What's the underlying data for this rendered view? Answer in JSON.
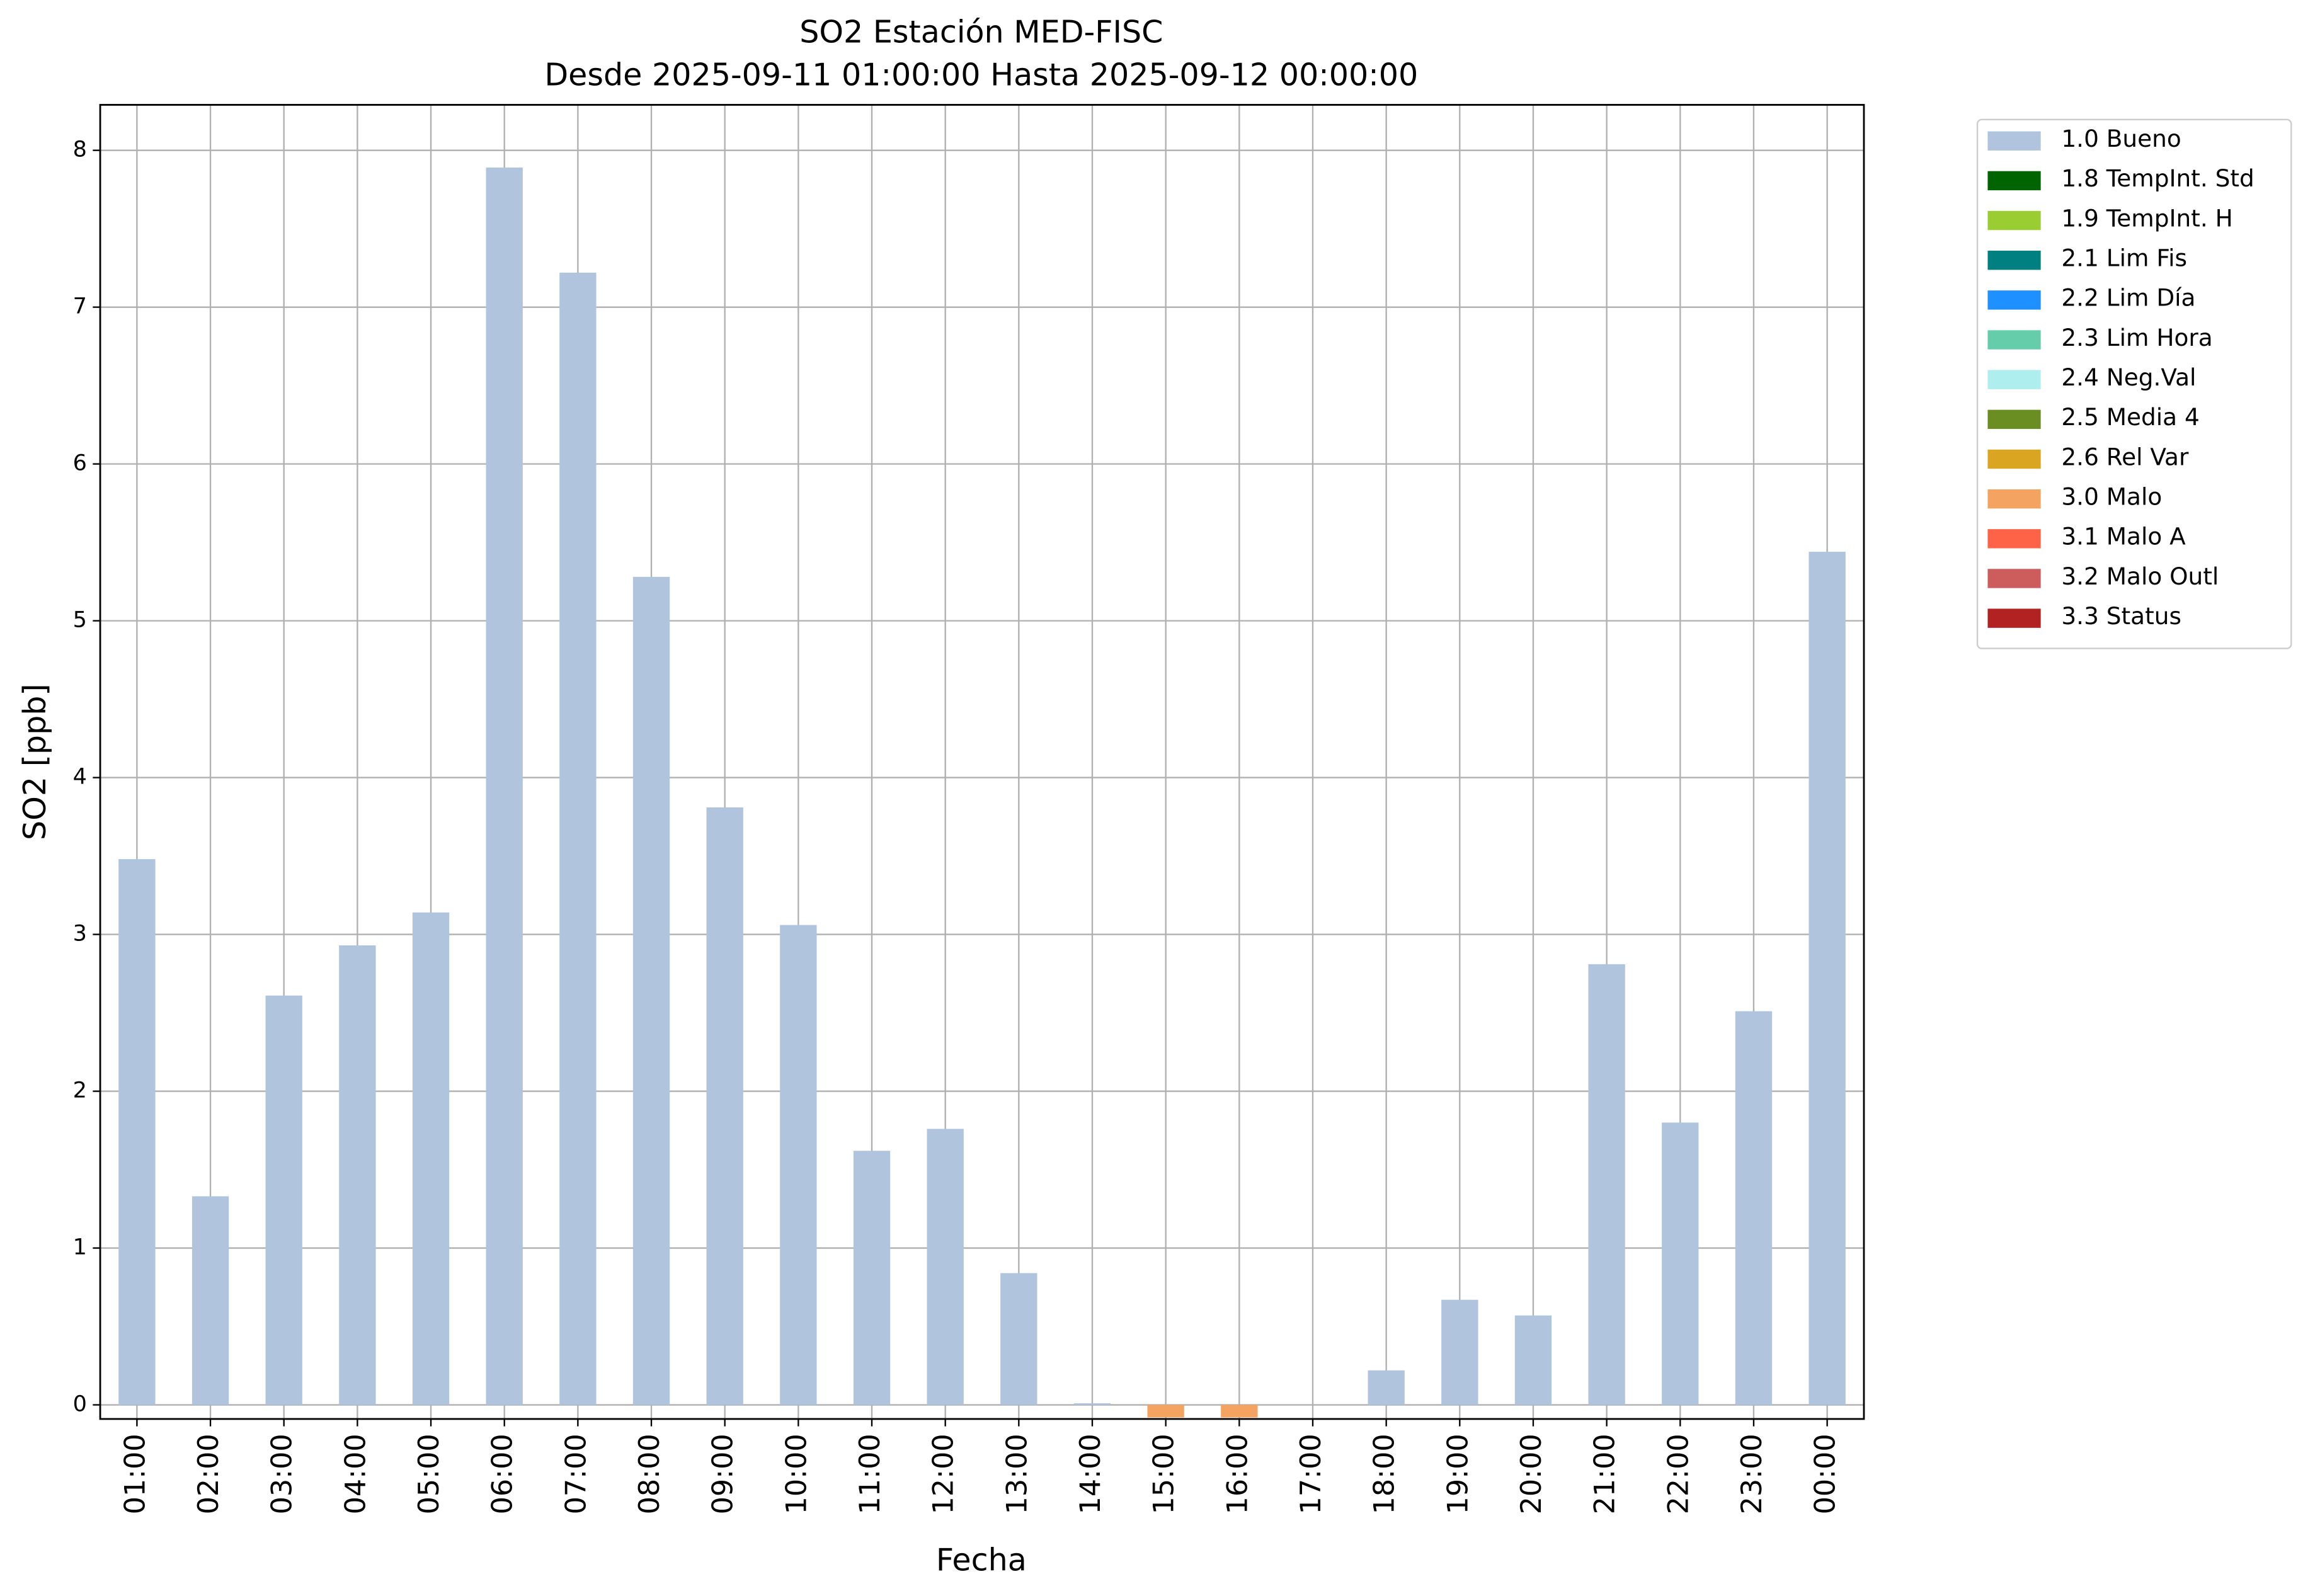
{
  "chart_data": {
    "type": "bar",
    "stacked": true,
    "title": "SO2 Estación MED-FISC",
    "subtitle": "Desde 2025-09-11 01:00:00 Hasta 2025-09-12 00:00:00",
    "xlabel": "Fecha",
    "ylabel": "SO2 [ppb]",
    "categories": [
      "01:00",
      "02:00",
      "03:00",
      "04:00",
      "05:00",
      "06:00",
      "07:00",
      "08:00",
      "09:00",
      "10:00",
      "11:00",
      "12:00",
      "13:00",
      "14:00",
      "15:00",
      "16:00",
      "17:00",
      "18:00",
      "19:00",
      "20:00",
      "21:00",
      "22:00",
      "23:00",
      "00:00"
    ],
    "series": [
      {
        "name": "1.0 Bueno",
        "color": "#b0c4de",
        "values": [
          3.48,
          1.33,
          2.61,
          2.93,
          3.14,
          7.89,
          7.22,
          5.28,
          3.81,
          3.06,
          1.62,
          1.76,
          0.84,
          0.01,
          null,
          null,
          0,
          0.22,
          0.67,
          0.57,
          2.81,
          1.8,
          2.51,
          5.44
        ]
      },
      {
        "name": "1.8 TempInt. Std",
        "color": "#006400",
        "values": [
          null,
          null,
          null,
          null,
          null,
          null,
          null,
          null,
          null,
          null,
          null,
          null,
          null,
          null,
          null,
          null,
          null,
          null,
          null,
          null,
          null,
          null,
          null,
          null
        ]
      },
      {
        "name": "1.9 TempInt. H",
        "color": "#9acd32",
        "values": [
          null,
          null,
          null,
          null,
          null,
          null,
          null,
          null,
          null,
          null,
          null,
          null,
          null,
          null,
          null,
          null,
          null,
          null,
          null,
          null,
          null,
          null,
          null,
          null
        ]
      },
      {
        "name": "2.1 Lim Fis",
        "color": "#008080",
        "values": [
          null,
          null,
          null,
          null,
          null,
          null,
          null,
          null,
          null,
          null,
          null,
          null,
          null,
          null,
          null,
          null,
          null,
          null,
          null,
          null,
          null,
          null,
          null,
          null
        ]
      },
      {
        "name": "2.2 Lim Día",
        "color": "#1e90ff",
        "values": [
          null,
          null,
          null,
          null,
          null,
          null,
          null,
          null,
          null,
          null,
          null,
          null,
          null,
          null,
          null,
          null,
          null,
          null,
          null,
          null,
          null,
          null,
          null,
          null
        ]
      },
      {
        "name": "2.3 Lim Hora",
        "color": "#66cdaa",
        "values": [
          null,
          null,
          null,
          null,
          null,
          null,
          null,
          null,
          null,
          null,
          null,
          null,
          null,
          null,
          null,
          null,
          null,
          null,
          null,
          null,
          null,
          null,
          null,
          null
        ]
      },
      {
        "name": "2.4 Neg.Val",
        "color": "#afeeee",
        "values": [
          null,
          null,
          null,
          null,
          null,
          null,
          null,
          null,
          null,
          null,
          null,
          null,
          null,
          null,
          null,
          null,
          null,
          null,
          null,
          null,
          null,
          null,
          null,
          null
        ]
      },
      {
        "name": "2.5 Media 4",
        "color": "#6b8e23",
        "values": [
          null,
          null,
          null,
          null,
          null,
          null,
          null,
          null,
          null,
          null,
          null,
          null,
          null,
          null,
          null,
          null,
          null,
          null,
          null,
          null,
          null,
          null,
          null,
          null
        ]
      },
      {
        "name": "2.6 Rel Var",
        "color": "#daa520",
        "values": [
          null,
          null,
          null,
          null,
          null,
          null,
          null,
          null,
          null,
          null,
          null,
          null,
          null,
          null,
          null,
          null,
          null,
          null,
          null,
          null,
          null,
          null,
          null,
          null
        ]
      },
      {
        "name": "3.0 Malo",
        "color": "#f4a460",
        "values": [
          null,
          null,
          null,
          null,
          null,
          null,
          null,
          null,
          null,
          null,
          null,
          null,
          null,
          null,
          -0.08,
          -0.08,
          null,
          null,
          null,
          null,
          null,
          null,
          null,
          null
        ]
      },
      {
        "name": "3.1 Malo A",
        "color": "#ff6347",
        "values": [
          null,
          null,
          null,
          null,
          null,
          null,
          null,
          null,
          null,
          null,
          null,
          null,
          null,
          null,
          null,
          null,
          null,
          null,
          null,
          null,
          null,
          null,
          null,
          null
        ]
      },
      {
        "name": "3.2 Malo Outl",
        "color": "#cd5c5c",
        "values": [
          null,
          null,
          null,
          null,
          null,
          null,
          null,
          null,
          null,
          null,
          null,
          null,
          null,
          null,
          null,
          null,
          null,
          null,
          null,
          null,
          null,
          null,
          null,
          null
        ]
      },
      {
        "name": "3.3 Status",
        "color": "#b22222",
        "values": [
          null,
          null,
          null,
          null,
          null,
          null,
          null,
          null,
          null,
          null,
          null,
          null,
          null,
          null,
          null,
          null,
          null,
          null,
          null,
          null,
          null,
          null,
          null,
          null
        ]
      }
    ],
    "ylim": [
      -0.09,
      8.29
    ],
    "yticks": [
      0,
      1,
      2,
      3,
      4,
      5,
      6,
      7,
      8
    ],
    "grid": true,
    "legend": "outside right"
  }
}
